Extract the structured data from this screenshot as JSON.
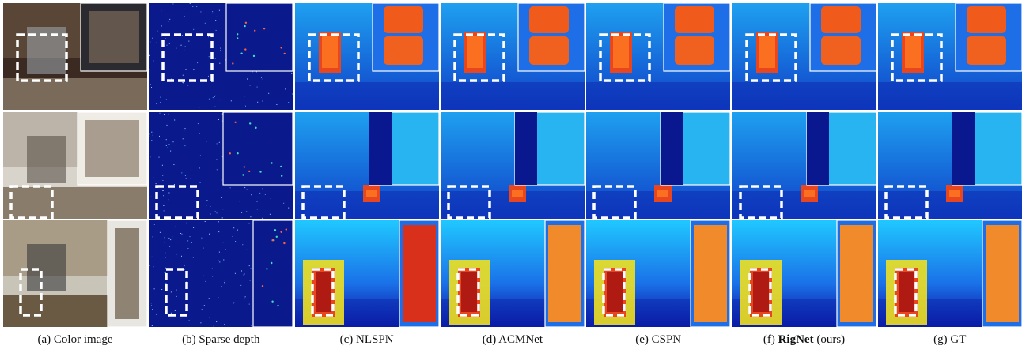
{
  "figure": {
    "columns": [
      {
        "prefix": "(a) Color image",
        "bold": "",
        "suffix": "",
        "kind": "color"
      },
      {
        "prefix": "(b) Sparse depth",
        "bold": "",
        "suffix": "",
        "kind": "sparse"
      },
      {
        "prefix": "(c) NLSPN",
        "bold": "",
        "suffix": "",
        "kind": "depth"
      },
      {
        "prefix": "(d) ACMNet",
        "bold": "",
        "suffix": "",
        "kind": "depth"
      },
      {
        "prefix": "(e) CSPN",
        "bold": "",
        "suffix": "",
        "kind": "depth"
      },
      {
        "prefix": "(f) ",
        "bold": "RigNet",
        "suffix": " (ours)",
        "kind": "depth"
      },
      {
        "prefix": "(g) GT",
        "bold": "",
        "suffix": "",
        "kind": "depth"
      }
    ],
    "rows": 3,
    "colors": {
      "sparse_bg": "#0a1a8c",
      "depth_near": "#0a0a9a",
      "depth_mid": "#1ea0f0",
      "depth_far": "#e8461e",
      "highlight_box": "#ffffff"
    }
  }
}
